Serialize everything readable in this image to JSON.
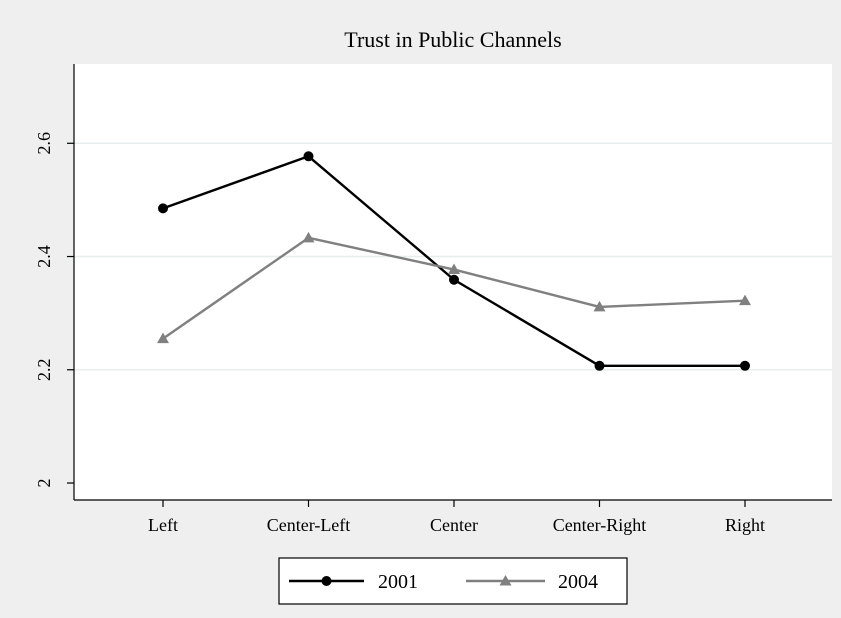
{
  "chart_data": {
    "type": "line",
    "title": "Trust in Public Channels",
    "xlabel": "",
    "ylabel": "",
    "categories": [
      "Left",
      "Center-Left",
      "Center",
      "Center-Right",
      "Right"
    ],
    "ylim": [
      1.97,
      2.74
    ],
    "yticks": [
      2,
      2.2,
      2.4,
      2.6
    ],
    "ytick_labels": [
      "2",
      "2.2",
      "2.4",
      "2.6"
    ],
    "grid": true,
    "legend_position": "bottom",
    "series": [
      {
        "name": "2001",
        "values": [
          2.485,
          2.577,
          2.359,
          2.207,
          2.207
        ],
        "color": "#000000",
        "marker": "circle"
      },
      {
        "name": "2004",
        "values": [
          2.255,
          2.433,
          2.377,
          2.311,
          2.322
        ],
        "color": "#808080",
        "marker": "triangle"
      }
    ]
  }
}
